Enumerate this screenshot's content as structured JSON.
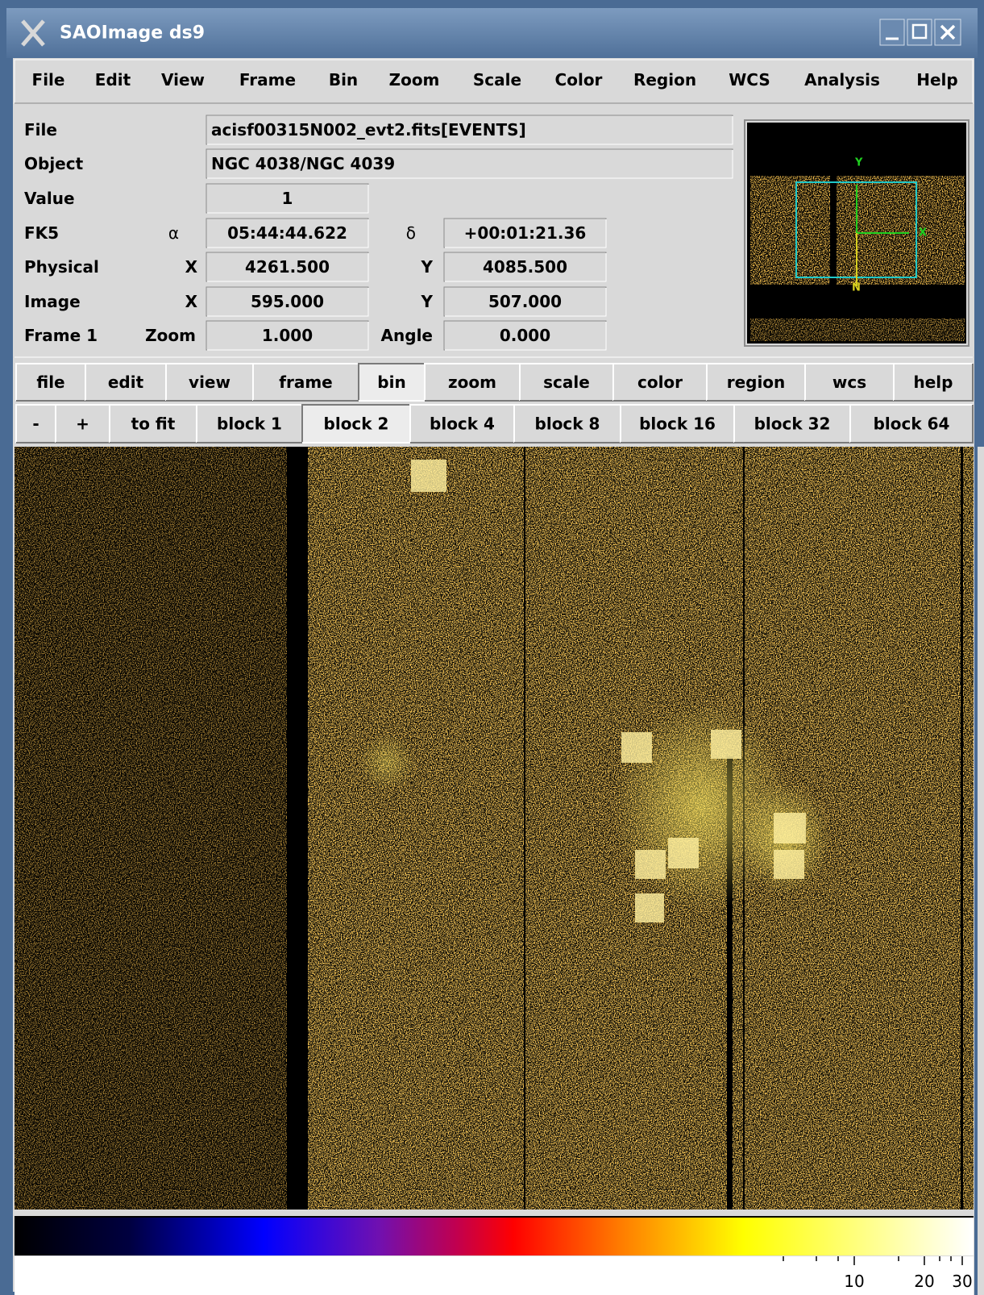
{
  "window": {
    "title": "SAOImage ds9"
  },
  "menubar": [
    "File",
    "Edit",
    "View",
    "Frame",
    "Bin",
    "Zoom",
    "Scale",
    "Color",
    "Region",
    "WCS",
    "Analysis",
    "Help"
  ],
  "info": {
    "file_label": "File",
    "file": "acisf00315N002_evt2.fits[EVENTS]",
    "object_label": "Object",
    "object": "NGC 4038/NGC 4039",
    "value_label": "Value",
    "value": "1",
    "fk5_label": "FK5",
    "alpha_label": "α",
    "alpha": "05:44:44.622",
    "delta_label": "δ",
    "delta": "+00:01:21.36",
    "physical_label": "Physical",
    "physical_x_label": "X",
    "physical_x": "4261.500",
    "physical_y_label": "Y",
    "physical_y": "4085.500",
    "image_label": "Image",
    "image_x_label": "X",
    "image_x": "595.000",
    "image_y_label": "Y",
    "image_y": "507.000",
    "frame_label": "Frame 1",
    "zoom_label": "Zoom",
    "zoom": "1.000",
    "angle_label": "Angle",
    "angle": "0.000"
  },
  "panner": {
    "compass": [
      "Y",
      "X",
      "N"
    ]
  },
  "buttonbar": [
    "file",
    "edit",
    "view",
    "frame",
    "bin",
    "zoom",
    "scale",
    "color",
    "region",
    "wcs",
    "help"
  ],
  "bin_buttons": [
    "-",
    "+",
    "to fit",
    "block 1",
    "block 2",
    "block 4",
    "block 8",
    "block 16",
    "block 32",
    "block 64"
  ],
  "colorbar": {
    "ticks": [
      10,
      20,
      30
    ]
  }
}
